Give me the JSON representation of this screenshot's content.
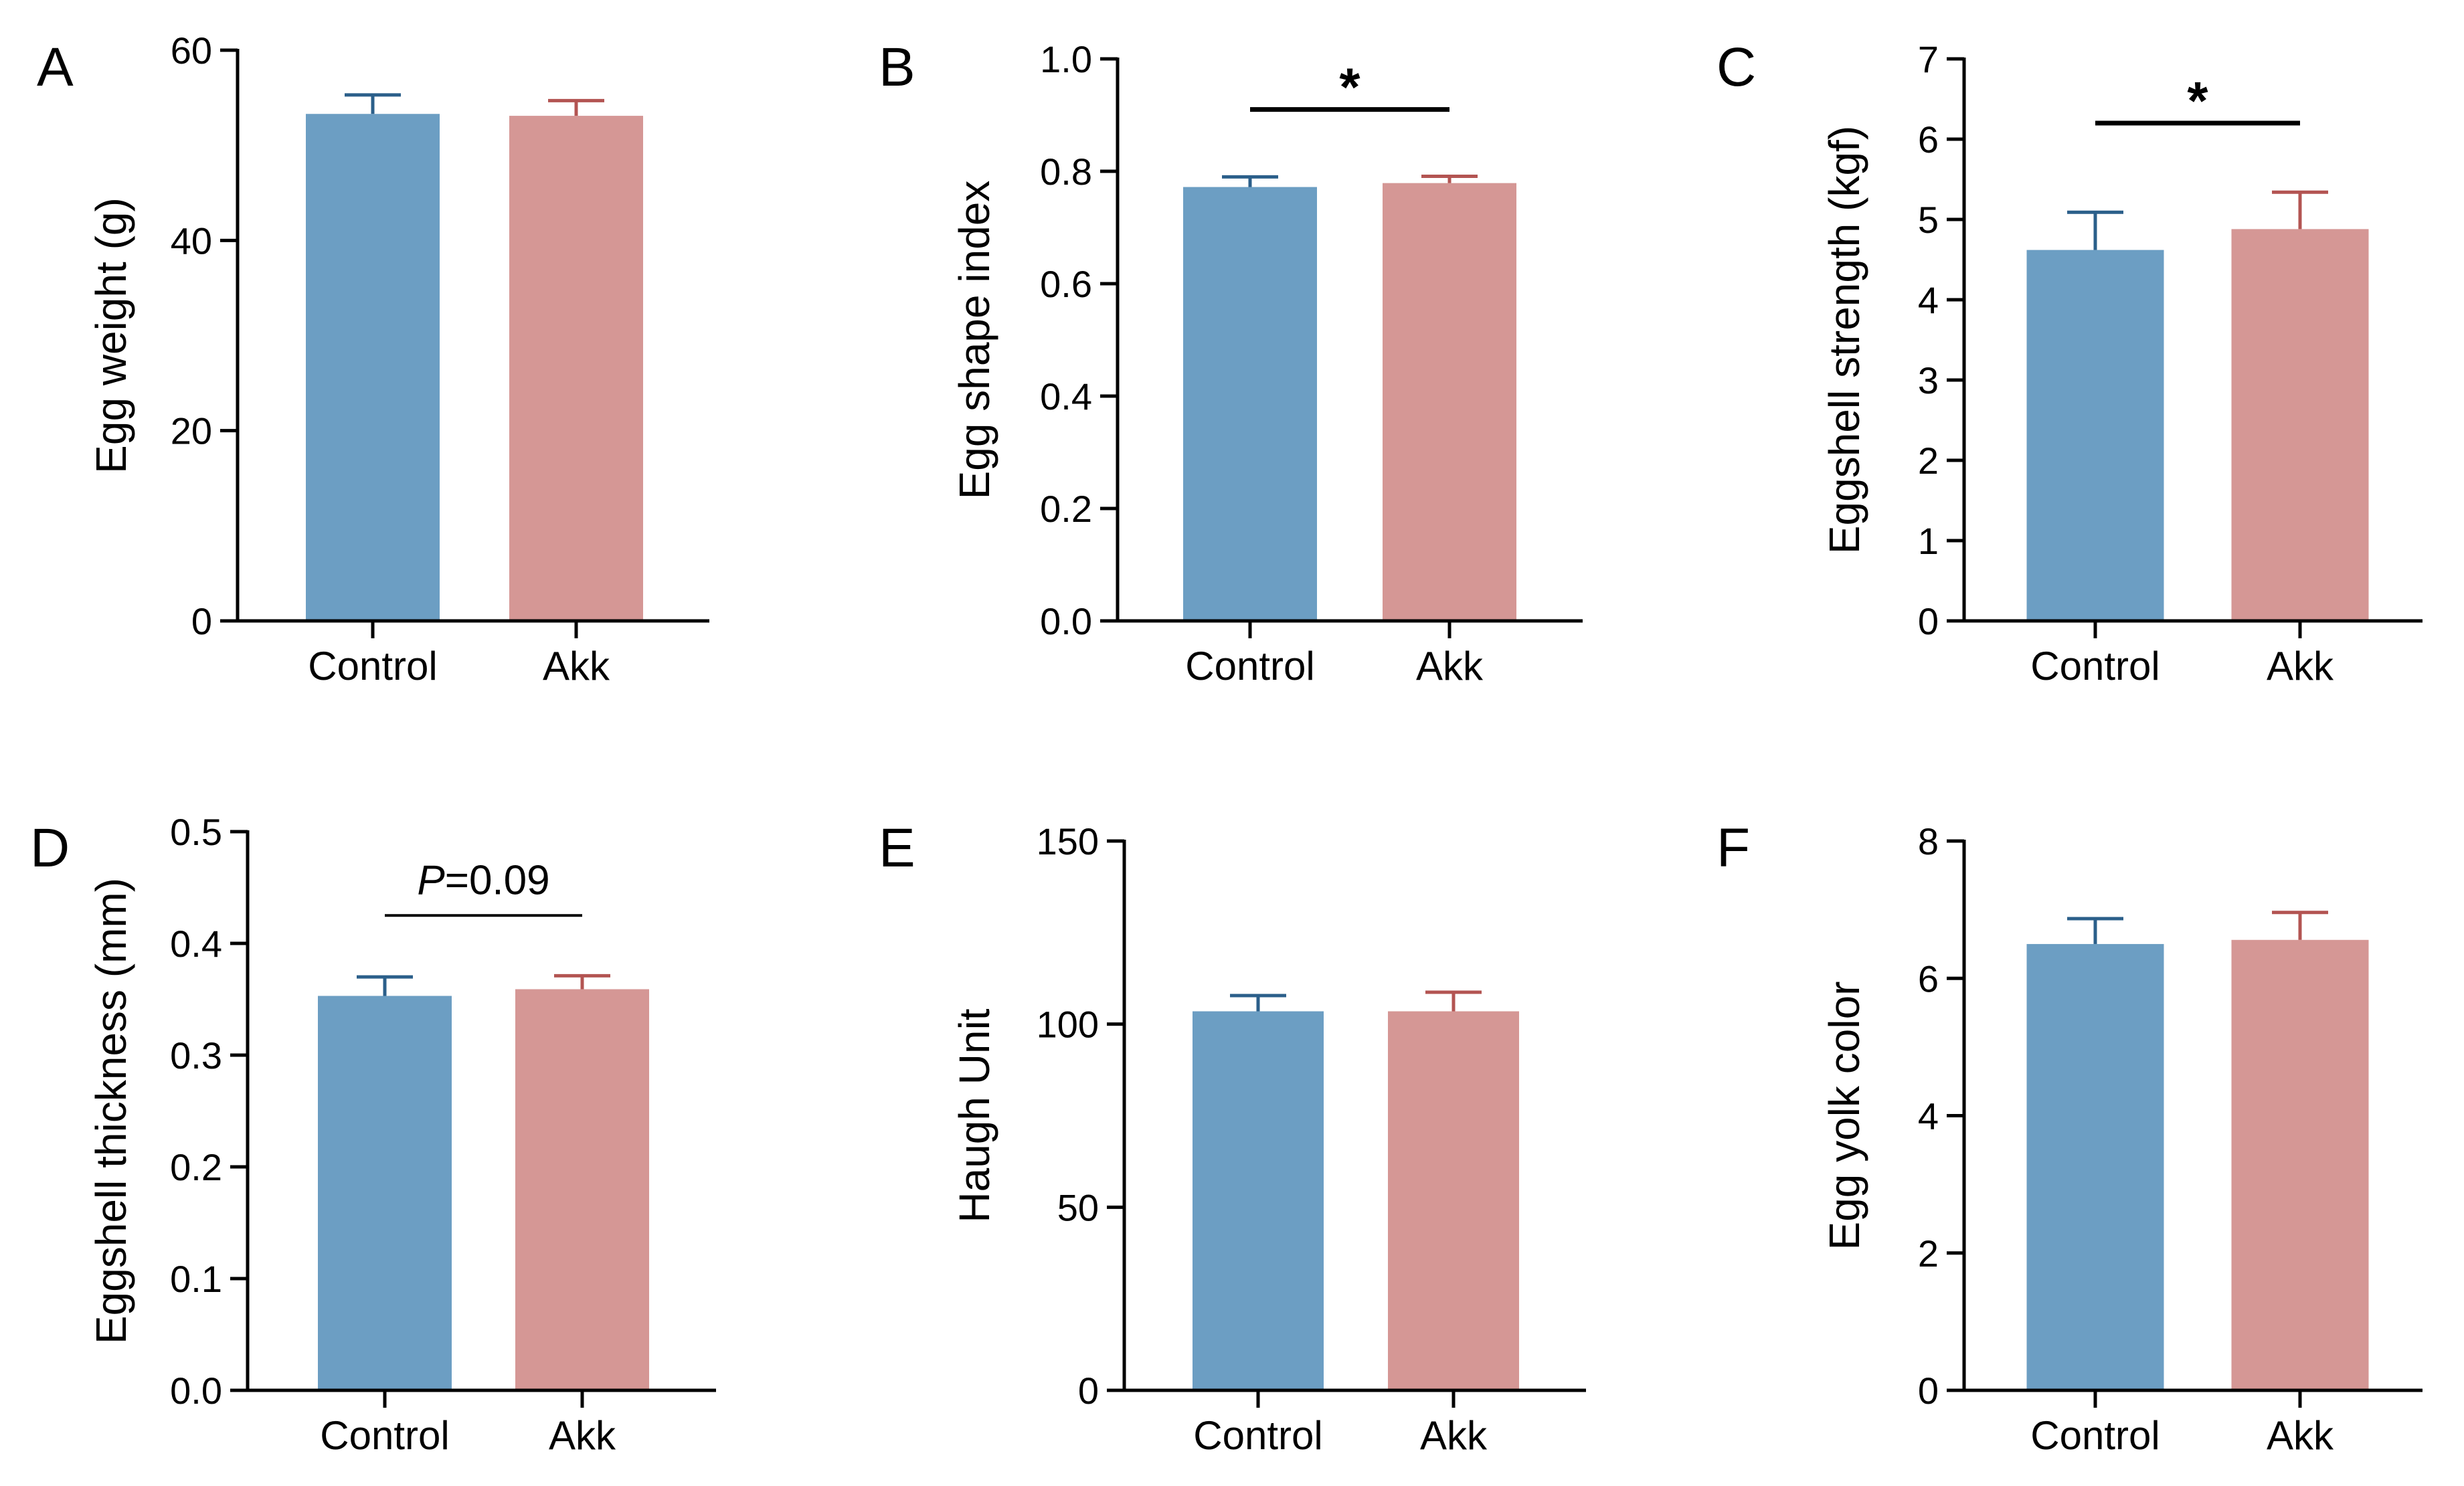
{
  "figure": {
    "description_free": true
  },
  "chart_data": [
    {
      "panel": "A",
      "type": "bar",
      "categories": [
        "Control",
        "Akk"
      ],
      "values": [
        53.3,
        53.1
      ],
      "errors": [
        2.0,
        1.6
      ],
      "bar_colors": [
        "#6c9ec3",
        "#d59795"
      ],
      "error_colors": [
        "#2b5f8a",
        "#b35452"
      ],
      "ylabel": "Egg weight (g)",
      "ylim": [
        0,
        60
      ],
      "yticks": [
        0,
        20,
        40,
        60
      ],
      "ytick_labels": [
        "0",
        "20",
        "40",
        "60"
      ],
      "significance": null
    },
    {
      "panel": "B",
      "type": "bar",
      "categories": [
        "Control",
        "Akk"
      ],
      "values": [
        0.772,
        0.779
      ],
      "errors": [
        0.018,
        0.012
      ],
      "bar_colors": [
        "#6c9ec3",
        "#d59795"
      ],
      "error_colors": [
        "#2b5f8a",
        "#b35452"
      ],
      "ylabel": "Egg  shape index",
      "ylim": [
        0,
        1.0
      ],
      "yticks": [
        0,
        0.2,
        0.4,
        0.6,
        0.8,
        1.0
      ],
      "ytick_labels": [
        "0.0",
        "0.2",
        "0.4",
        "0.6",
        "0.8",
        "1.0"
      ],
      "significance": {
        "label": "*",
        "y": 0.91,
        "italic_prefix": ""
      }
    },
    {
      "panel": "C",
      "type": "bar",
      "categories": [
        "Control",
        "Akk"
      ],
      "values": [
        4.62,
        4.88
      ],
      "errors": [
        0.47,
        0.46
      ],
      "bar_colors": [
        "#6c9ec3",
        "#d59795"
      ],
      "error_colors": [
        "#2b5f8a",
        "#b35452"
      ],
      "ylabel": "Eggshell strength (kgf)",
      "ylim": [
        0,
        7
      ],
      "yticks": [
        0,
        1,
        2,
        3,
        4,
        5,
        6,
        7
      ],
      "ytick_labels": [
        "0",
        "1",
        "2",
        "3",
        "4",
        "5",
        "6",
        "7"
      ],
      "significance": {
        "label": "*",
        "y": 6.2,
        "italic_prefix": ""
      }
    },
    {
      "panel": "D",
      "type": "bar",
      "categories": [
        "Control",
        "Akk"
      ],
      "values": [
        0.353,
        0.359
      ],
      "errors": [
        0.017,
        0.012
      ],
      "bar_colors": [
        "#6c9ec3",
        "#d59795"
      ],
      "error_colors": [
        "#2b5f8a",
        "#b35452"
      ],
      "ylabel": "Eggshell thickness (mm)",
      "ylim": [
        0,
        0.5
      ],
      "yticks": [
        0,
        0.1,
        0.2,
        0.3,
        0.4,
        0.5
      ],
      "ytick_labels": [
        "0.0",
        "0.1",
        "0.2",
        "0.3",
        "0.4",
        "0.5"
      ],
      "significance": {
        "label": "=0.09",
        "y": 0.425,
        "italic_prefix": "P"
      }
    },
    {
      "panel": "E",
      "type": "bar",
      "categories": [
        "Control",
        "Akk"
      ],
      "values": [
        103.5,
        103.5
      ],
      "errors": [
        4.3,
        5.2
      ],
      "bar_colors": [
        "#6c9ec3",
        "#d59795"
      ],
      "error_colors": [
        "#2b5f8a",
        "#b35452"
      ],
      "ylabel": "Haugh Unit",
      "ylim": [
        0,
        150
      ],
      "yticks": [
        0,
        50,
        100,
        150
      ],
      "ytick_labels": [
        "0",
        "50",
        "100",
        "150"
      ],
      "significance": null
    },
    {
      "panel": "F",
      "type": "bar",
      "categories": [
        "Control",
        "Akk"
      ],
      "values": [
        6.5,
        6.56
      ],
      "errors": [
        0.37,
        0.4
      ],
      "bar_colors": [
        "#6c9ec3",
        "#d59795"
      ],
      "error_colors": [
        "#2b5f8a",
        "#b35452"
      ],
      "ylabel": "Egg yolk color",
      "ylim": [
        0,
        8
      ],
      "yticks": [
        0,
        2,
        4,
        6,
        8
      ],
      "ytick_labels": [
        "0",
        "2",
        "4",
        "6",
        "8"
      ],
      "significance": null
    }
  ]
}
